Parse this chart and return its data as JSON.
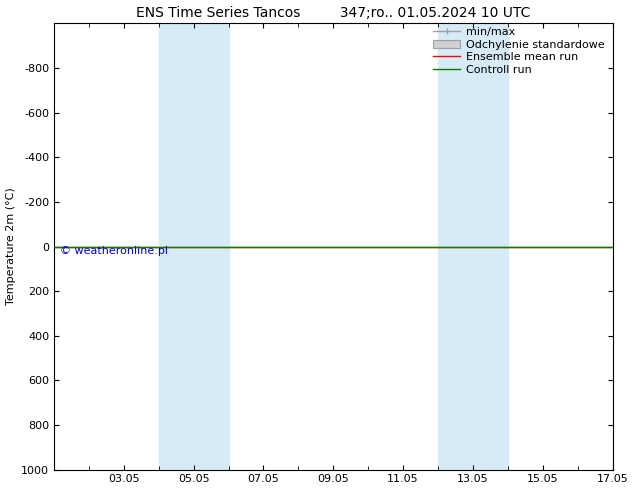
{
  "title": "ENS Time Series Tancos         347;ro.. 01.05.2024 10 UTC",
  "ylabel": "Temperature 2m (°C)",
  "ylim_bottom": -1000,
  "ylim_top": 1000,
  "yticks": [
    -800,
    -600,
    -400,
    -200,
    0,
    200,
    400,
    600,
    800,
    1000
  ],
  "xtick_labels": [
    "03.05",
    "05.05",
    "07.05",
    "09.05",
    "11.05",
    "13.05",
    "15.05",
    "17.05"
  ],
  "xtick_positions": [
    2,
    4,
    6,
    8,
    10,
    12,
    14,
    16
  ],
  "x_total_days": 16,
  "shaded_bands": [
    {
      "x_start": 3,
      "x_end": 5
    },
    {
      "x_start": 11,
      "x_end": 13
    }
  ],
  "ensemble_mean_y": 0,
  "control_run_y": 0,
  "ensemble_mean_color": "#ff0000",
  "control_run_color": "#008000",
  "background_color": "#ffffff",
  "shade_color": "#d6eaf8",
  "watermark": "© weatheronline.pl",
  "watermark_color": "#0000cc",
  "font_size_title": 10,
  "font_size_axis": 8,
  "font_size_tick": 8,
  "font_size_legend": 8,
  "font_size_watermark": 8,
  "minmax_color": "#a0a0a0",
  "std_color": "#d0d0d0"
}
